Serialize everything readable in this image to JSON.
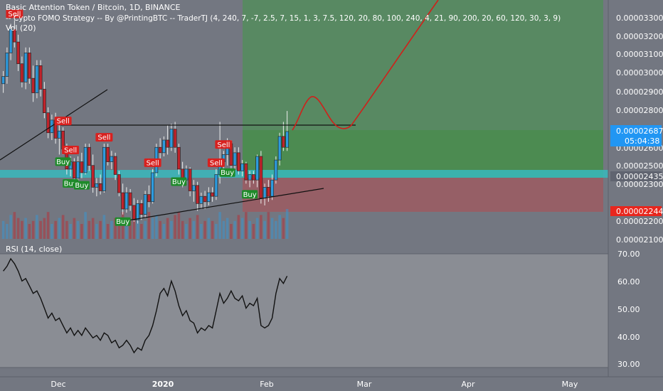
{
  "header": {
    "title": "Basic Attention Token / Bitcoin, 1D, BINANCE",
    "strategy": "-- Cypto FOMO Strategy -- By @PrintingBTC -- TraderTJ (4, 240, 7, -7, 2.5, 7, 15, 1, 3, 7.5, 120, 20, 80, 100, 240, 4, 21, 90, 200, 20, 60, 120, 30, 3, 9)",
    "volume": "Vol (20)"
  },
  "rsi_title": "RSI (14, close)",
  "price_axis_labels": [
    "0.00003300",
    "0.00003200",
    "0.00003100",
    "0.00003000",
    "0.00002900",
    "0.00002800",
    "0.00002600",
    "0.00002500",
    "0.00002300",
    "0.00002200",
    "0.00002100"
  ],
  "rsi_axis_labels": [
    "70.00",
    "60.00",
    "50.00",
    "40.00",
    "30.00"
  ],
  "time_axis_labels": [
    "Dec",
    "2020",
    "Feb",
    "Mar",
    "Apr",
    "May"
  ],
  "badges": {
    "current_price": "0.00002687",
    "countdown": "05:04:38",
    "entry_price": "0.00002435",
    "stop_price": "0.00002244"
  },
  "colors": {
    "background": "#737781",
    "rsi_background": "#8a8d94",
    "up_candle": "#2e9bde",
    "down_candle": "#c0232b",
    "buy_label": "#1e8a2a",
    "sell_label": "#d8211f",
    "profit_zone": "#4f8f58",
    "loss_zone": "#9c5a62",
    "entry_band": "#38b8bd",
    "projection_line": "#d0201a",
    "current_badge": "#2196f3",
    "stop_badge": "#e8261d"
  },
  "chart_data": {
    "type": "candlestick",
    "price_ylim": [
      2.08e-05,
      3.38e-05
    ],
    "rsi_ylim": [
      27,
      73
    ],
    "candles": [
      [
        2.95e-05,
        3.02e-05,
        2.9e-05,
        2.99e-05
      ],
      [
        2.99e-05,
        3.15e-05,
        2.95e-05,
        3.12e-05
      ],
      [
        3.12e-05,
        3.28e-05,
        3.08e-05,
        3.25e-05
      ],
      [
        3.25e-05,
        3.3e-05,
        3.15e-05,
        3.18e-05
      ],
      [
        3.18e-05,
        3.22e-05,
        3.02e-05,
        3.06e-05
      ],
      [
        3.06e-05,
        3.1e-05,
        2.93e-05,
        2.96e-05
      ],
      [
        2.96e-05,
        3.15e-05,
        2.92e-05,
        3.12e-05
      ],
      [
        3.12e-05,
        3.15e-05,
        2.95e-05,
        2.98e-05
      ],
      [
        2.98e-05,
        3.05e-05,
        2.85e-05,
        2.9e-05
      ],
      [
        2.9e-05,
        3.08e-05,
        2.87e-05,
        3.05e-05
      ],
      [
        3.05e-05,
        3.08e-05,
        2.88e-05,
        2.92e-05
      ],
      [
        2.92e-05,
        2.96e-05,
        2.76e-05,
        2.79e-05
      ],
      [
        2.79e-05,
        2.82e-05,
        2.65e-05,
        2.68e-05
      ],
      [
        2.68e-05,
        2.78e-05,
        2.64e-05,
        2.75e-05
      ],
      [
        2.75e-05,
        2.79e-05,
        2.62e-05,
        2.65e-05
      ],
      [
        2.65e-05,
        2.72e-05,
        2.56e-05,
        2.69e-05
      ],
      [
        2.69e-05,
        2.71e-05,
        2.56e-05,
        2.59e-05
      ],
      [
        2.59e-05,
        2.62e-05,
        2.45e-05,
        2.48e-05
      ],
      [
        2.48e-05,
        2.55e-05,
        2.44e-05,
        2.52e-05
      ],
      [
        2.52e-05,
        2.54e-05,
        2.4e-05,
        2.43e-05
      ],
      [
        2.43e-05,
        2.55e-05,
        2.41e-05,
        2.52e-05
      ],
      [
        2.52e-05,
        2.57e-05,
        2.43e-05,
        2.46e-05
      ],
      [
        2.46e-05,
        2.62e-05,
        2.45e-05,
        2.6e-05
      ],
      [
        2.6e-05,
        2.62e-05,
        2.47e-05,
        2.5e-05
      ],
      [
        2.5e-05,
        2.56e-05,
        2.35e-05,
        2.38e-05
      ],
      [
        2.38e-05,
        2.43e-05,
        2.33e-05,
        2.4e-05
      ],
      [
        2.4e-05,
        2.45e-05,
        2.34e-05,
        2.36e-05
      ],
      [
        2.36e-05,
        2.62e-05,
        2.35e-05,
        2.6e-05
      ],
      [
        2.6e-05,
        2.62e-05,
        2.5e-05,
        2.52e-05
      ],
      [
        2.52e-05,
        2.58e-05,
        2.48e-05,
        2.55e-05
      ],
      [
        2.55e-05,
        2.57e-05,
        2.42e-05,
        2.45e-05
      ],
      [
        2.45e-05,
        2.47e-05,
        2.33e-05,
        2.35e-05
      ],
      [
        2.35e-05,
        2.4e-05,
        2.23e-05,
        2.26e-05
      ],
      [
        2.26e-05,
        2.38e-05,
        2.24e-05,
        2.35e-05
      ],
      [
        2.35e-05,
        2.37e-05,
        2.25e-05,
        2.28e-05
      ],
      [
        2.28e-05,
        2.32e-05,
        2.19e-05,
        2.2e-05
      ],
      [
        2.2e-05,
        2.31e-05,
        2.18e-05,
        2.29e-05
      ],
      [
        2.29e-05,
        2.31e-05,
        2.2e-05,
        2.23e-05
      ],
      [
        2.23e-05,
        2.36e-05,
        2.21e-05,
        2.34e-05
      ],
      [
        2.34e-05,
        2.39e-05,
        2.27e-05,
        2.3e-05
      ],
      [
        2.3e-05,
        2.48e-05,
        2.29e-05,
        2.46e-05
      ],
      [
        2.46e-05,
        2.62e-05,
        2.44e-05,
        2.6e-05
      ],
      [
        2.6e-05,
        2.65e-05,
        2.52e-05,
        2.57e-05
      ],
      [
        2.57e-05,
        2.66e-05,
        2.55e-05,
        2.64e-05
      ],
      [
        2.64e-05,
        2.72e-05,
        2.56e-05,
        2.6e-05
      ],
      [
        2.6e-05,
        2.73e-05,
        2.58e-05,
        2.7e-05
      ],
      [
        2.7e-05,
        2.74e-05,
        2.57e-05,
        2.6e-05
      ],
      [
        2.6e-05,
        2.62e-05,
        2.45e-05,
        2.48e-05
      ],
      [
        2.48e-05,
        2.52e-05,
        2.38e-05,
        2.42e-05
      ],
      [
        2.42e-05,
        2.5e-05,
        2.4e-05,
        2.48e-05
      ],
      [
        2.48e-05,
        2.49e-05,
        2.33e-05,
        2.36e-05
      ],
      [
        2.36e-05,
        2.42e-05,
        2.3e-05,
        2.39e-05
      ],
      [
        2.39e-05,
        2.41e-05,
        2.25e-05,
        2.29e-05
      ],
      [
        2.29e-05,
        2.35e-05,
        2.26e-05,
        2.33e-05
      ],
      [
        2.33e-05,
        2.36e-05,
        2.26e-05,
        2.3e-05
      ],
      [
        2.3e-05,
        2.38e-05,
        2.28e-05,
        2.35e-05
      ],
      [
        2.35e-05,
        2.38e-05,
        2.3e-05,
        2.33e-05
      ],
      [
        2.33e-05,
        2.48e-05,
        2.31e-05,
        2.45e-05
      ],
      [
        2.45e-05,
        2.74e-05,
        2.4e-05,
        2.52e-05
      ],
      [
        2.52e-05,
        2.58e-05,
        2.46e-05,
        2.56e-05
      ],
      [
        2.56e-05,
        2.65e-05,
        2.5e-05,
        2.62e-05
      ],
      [
        2.62e-05,
        2.64e-05,
        2.47e-05,
        2.5e-05
      ],
      [
        2.5e-05,
        2.6e-05,
        2.48e-05,
        2.57e-05
      ],
      [
        2.57e-05,
        2.6e-05,
        2.45e-05,
        2.47e-05
      ],
      [
        2.47e-05,
        2.53e-05,
        2.44e-05,
        2.51e-05
      ],
      [
        2.51e-05,
        2.52e-05,
        2.4e-05,
        2.42e-05
      ],
      [
        2.42e-05,
        2.47e-05,
        2.38e-05,
        2.45e-05
      ],
      [
        2.45e-05,
        2.47e-05,
        2.4e-05,
        2.42e-05
      ],
      [
        2.42e-05,
        2.56e-05,
        2.38e-05,
        2.55e-05
      ],
      [
        2.55e-05,
        2.58e-05,
        2.29e-05,
        2.32e-05
      ],
      [
        2.32e-05,
        2.4e-05,
        2.28e-05,
        2.38e-05
      ],
      [
        2.38e-05,
        2.42e-05,
        2.3e-05,
        2.33e-05
      ],
      [
        2.33e-05,
        2.45e-05,
        2.31e-05,
        2.42e-05
      ],
      [
        2.42e-05,
        2.55e-05,
        2.4e-05,
        2.53e-05
      ],
      [
        2.53e-05,
        2.68e-05,
        2.5e-05,
        2.66e-05
      ],
      [
        2.66e-05,
        2.74e-05,
        2.58e-05,
        2.6e-05
      ],
      [
        2.6e-05,
        2.8e-05,
        2.58e-05,
        2.687e-05
      ]
    ],
    "volume": [
      6,
      5,
      8,
      9,
      7,
      6,
      7,
      5,
      6,
      8,
      6,
      7,
      9,
      5,
      6,
      7,
      8,
      6,
      5,
      7,
      6,
      5,
      9,
      6,
      7,
      5,
      6,
      8,
      5,
      6,
      7,
      6,
      9,
      5,
      6,
      8,
      7,
      5,
      6,
      9,
      7,
      8,
      6,
      5,
      7,
      6,
      8,
      9,
      6,
      5,
      7,
      6,
      8,
      5,
      6,
      7,
      6,
      5,
      9,
      6,
      7,
      5,
      6,
      8,
      7,
      9,
      6,
      5,
      7,
      8,
      6,
      9,
      7,
      6,
      8,
      7,
      10
    ],
    "rsi": [
      66,
      68,
      71,
      69,
      66,
      62,
      63,
      60,
      57,
      58,
      55,
      51,
      47,
      49,
      46,
      47,
      44,
      41,
      43,
      40,
      42,
      40,
      43,
      41,
      39,
      40,
      38,
      41,
      40,
      37,
      38,
      35,
      36,
      38,
      36,
      33,
      35,
      34,
      38,
      40,
      44,
      50,
      57,
      59,
      56,
      62,
      58,
      52,
      48,
      50,
      46,
      45,
      41,
      43,
      42,
      44,
      43,
      50,
      57,
      53,
      55,
      58,
      55,
      54,
      56,
      51,
      53,
      52,
      55,
      44,
      43,
      44,
      47,
      57,
      63,
      61,
      64
    ],
    "signals": [
      {
        "label": "Sell",
        "type": "sell",
        "index": 3
      },
      {
        "label": "Sell",
        "type": "sell",
        "index": 16
      },
      {
        "label": "Sell",
        "type": "sell",
        "index": 18
      },
      {
        "label": "Buy",
        "type": "buy",
        "index": 16
      },
      {
        "label": "Buy",
        "type": "buy",
        "index": 18
      },
      {
        "label": "Buy",
        "type": "buy",
        "index": 21
      },
      {
        "label": "Sell",
        "type": "sell",
        "index": 27
      },
      {
        "label": "Buy",
        "type": "buy",
        "index": 32
      },
      {
        "label": "Sell",
        "type": "sell",
        "index": 40
      },
      {
        "label": "Buy",
        "type": "buy",
        "index": 47
      },
      {
        "label": "Sell",
        "type": "sell",
        "index": 59
      },
      {
        "label": "Sell",
        "type": "sell",
        "index": 57
      },
      {
        "label": "Buy",
        "type": "buy",
        "index": 60
      },
      {
        "label": "Buy",
        "type": "buy",
        "index": 66
      }
    ]
  }
}
